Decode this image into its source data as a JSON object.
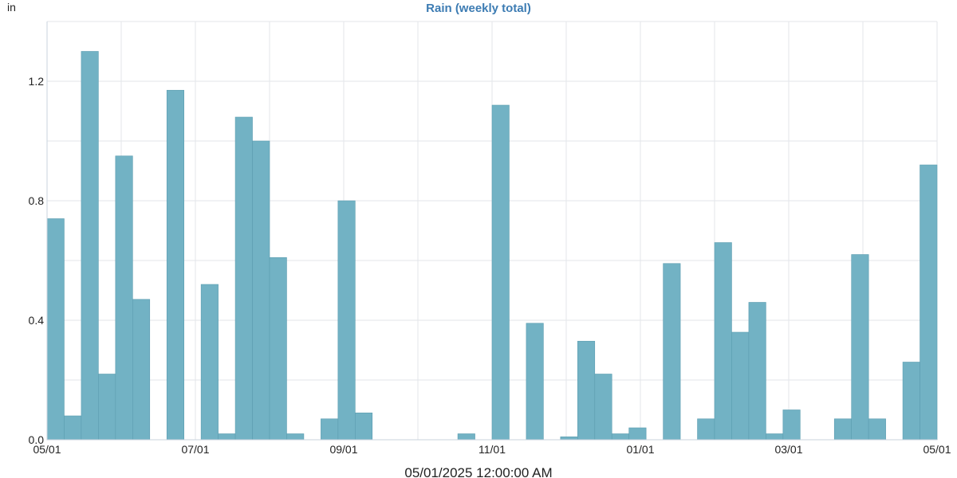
{
  "chart_data": {
    "type": "bar",
    "title": "Rain (weekly total)",
    "y_unit": "in",
    "footer_label": "05/01/2025 12:00:00 AM",
    "ylim": [
      0,
      1.4
    ],
    "y_ticks": [
      "0.0",
      "0.4",
      "0.8",
      "1.2"
    ],
    "x_tick_labels": [
      "05/01",
      "07/01",
      "09/01",
      "11/01",
      "01/01",
      "03/01",
      "05/01"
    ],
    "grid": true,
    "series": [
      {
        "values": [
          0.74,
          0.08,
          1.3,
          0.22,
          0.95,
          0.47,
          0,
          1.17,
          0,
          0.52,
          0.02,
          1.08,
          1.0,
          0.61,
          0.02,
          0,
          0.07,
          0.8,
          0.09,
          0,
          0,
          0,
          0,
          0,
          0.02,
          0,
          1.12,
          0,
          0.39,
          0,
          0.01,
          0.33,
          0.22,
          0.02,
          0.04,
          0,
          0.59,
          0,
          0.07,
          0.66,
          0.36,
          0.46,
          0.02,
          0.1,
          0,
          0,
          0.07,
          0.62,
          0.07,
          0,
          0.26,
          0.92
        ]
      }
    ],
    "colors": {
      "bar": "#72b2c4",
      "bar_edge": "#5c9db0",
      "title": "#3d7cb3",
      "grid": "#e3e6ea",
      "axis": "#c9d3dc"
    }
  }
}
